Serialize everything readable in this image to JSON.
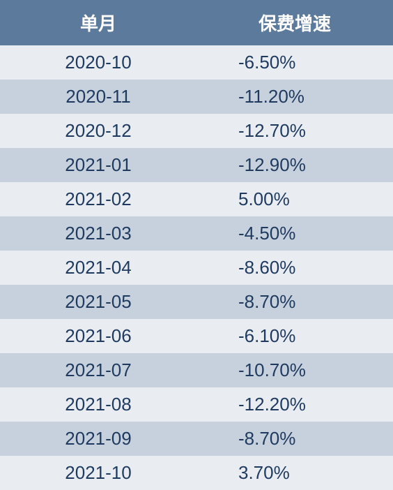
{
  "table": {
    "type": "table",
    "header_bg": "#5c7a9c",
    "header_fg": "#ffffff",
    "row_odd_bg": "#e9edf2",
    "row_even_bg": "#c7d1de",
    "text_color": "#1f3a5f",
    "font_size_header": 26,
    "font_size_body": 26,
    "columns": [
      {
        "label": "单月",
        "align": "center"
      },
      {
        "label": "保费增速",
        "align": "center"
      }
    ],
    "rows": [
      {
        "month": "2020-10",
        "rate": "-6.50%"
      },
      {
        "month": "2020-11",
        "rate": "-11.20%"
      },
      {
        "month": "2020-12",
        "rate": "-12.70%"
      },
      {
        "month": "2021-01",
        "rate": "-12.90%"
      },
      {
        "month": "2021-02",
        "rate": "5.00%"
      },
      {
        "month": "2021-03",
        "rate": "-4.50%"
      },
      {
        "month": "2021-04",
        "rate": "-8.60%"
      },
      {
        "month": "2021-05",
        "rate": "-8.70%"
      },
      {
        "month": "2021-06",
        "rate": "-6.10%"
      },
      {
        "month": "2021-07",
        "rate": "-10.70%"
      },
      {
        "month": "2021-08",
        "rate": "-12.20%"
      },
      {
        "month": "2021-09",
        "rate": "-8.70%"
      },
      {
        "month": "2021-10",
        "rate": "3.70%"
      }
    ]
  }
}
